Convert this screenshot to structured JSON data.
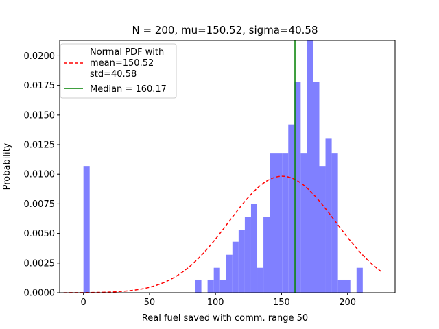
{
  "chart_data": {
    "type": "bar",
    "title": "N = 200, mu=150.52, sigma=40.58",
    "xlabel": "Real fuel saved with comm. range 50",
    "ylabel": "Probability",
    "xlim": [
      -18,
      236
    ],
    "ylim": [
      0,
      0.0213
    ],
    "xticks": [
      0,
      50,
      100,
      150,
      200
    ],
    "yticks": [
      0.0,
      0.0025,
      0.005,
      0.0075,
      0.01,
      0.0125,
      0.015,
      0.0175,
      0.02
    ],
    "ytick_labels": [
      "0.0000",
      "0.0025",
      "0.0050",
      "0.0075",
      "0.0100",
      "0.0125",
      "0.0150",
      "0.0175",
      "0.0200"
    ],
    "grid": false,
    "legend_position": "upper-left",
    "histogram": {
      "bin_width": 4.7,
      "color": "#8080ff",
      "bins": [
        {
          "x": 0.0,
          "value": 0.0107
        },
        {
          "x": 84.6,
          "value": 0.0011
        },
        {
          "x": 94.0,
          "value": 0.0011
        },
        {
          "x": 98.7,
          "value": 0.0021
        },
        {
          "x": 103.4,
          "value": 0.0011
        },
        {
          "x": 108.1,
          "value": 0.0032
        },
        {
          "x": 112.8,
          "value": 0.0043
        },
        {
          "x": 117.5,
          "value": 0.0053
        },
        {
          "x": 122.2,
          "value": 0.0064
        },
        {
          "x": 126.9,
          "value": 0.0075
        },
        {
          "x": 131.6,
          "value": 0.0021
        },
        {
          "x": 136.3,
          "value": 0.0064
        },
        {
          "x": 141.0,
          "value": 0.0118
        },
        {
          "x": 145.7,
          "value": 0.0118
        },
        {
          "x": 150.4,
          "value": 0.0118
        },
        {
          "x": 155.1,
          "value": 0.0142
        },
        {
          "x": 159.8,
          "value": 0.0178
        },
        {
          "x": 164.5,
          "value": 0.0118
        },
        {
          "x": 169.2,
          "value": 0.0213
        },
        {
          "x": 173.9,
          "value": 0.0178
        },
        {
          "x": 178.6,
          "value": 0.0107
        },
        {
          "x": 183.3,
          "value": 0.013
        },
        {
          "x": 188.0,
          "value": 0.0118
        },
        {
          "x": 192.7,
          "value": 0.0011
        },
        {
          "x": 197.4,
          "value": 0.0011
        },
        {
          "x": 206.8,
          "value": 0.0021
        }
      ]
    },
    "series": [
      {
        "name": "Normal PDF with\nmean=150.52\nstd=40.58",
        "type": "line",
        "style": "dashed",
        "color": "#ff0000",
        "mean": 150.52,
        "std": 40.58,
        "x_range": [
          -15,
          227
        ]
      },
      {
        "name": "Median = 160.17",
        "type": "vline",
        "color": "#008000",
        "x": 160.17
      }
    ]
  }
}
